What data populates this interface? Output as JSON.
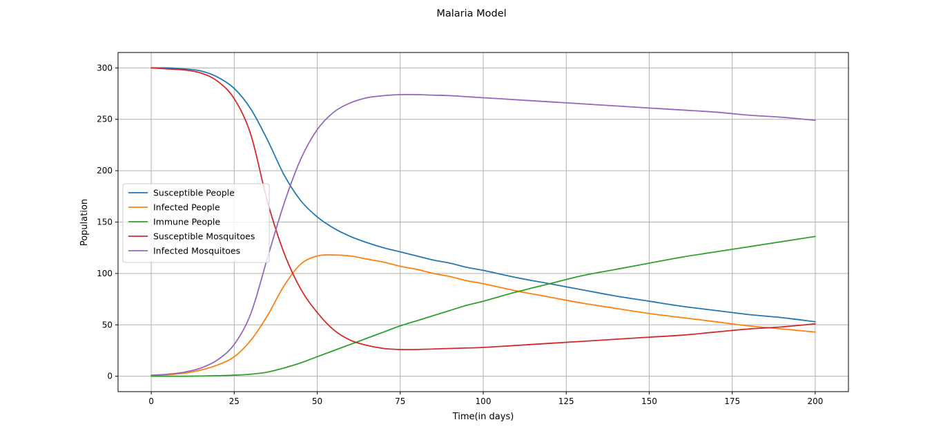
{
  "chart_data": {
    "type": "line",
    "title": "Malaria Model",
    "xlabel": "Time(in days)",
    "ylabel": "Population",
    "xlim": [
      -10,
      210
    ],
    "ylim": [
      -15,
      315
    ],
    "xticks": [
      0,
      25,
      50,
      75,
      100,
      125,
      150,
      175,
      200
    ],
    "yticks": [
      0,
      50,
      100,
      150,
      200,
      250,
      300
    ],
    "grid": true,
    "legend": "center-left",
    "x": [
      0,
      5,
      10,
      15,
      20,
      25,
      30,
      35,
      40,
      45,
      50,
      55,
      60,
      65,
      70,
      75,
      80,
      85,
      90,
      95,
      100,
      110,
      120,
      130,
      140,
      150,
      160,
      170,
      180,
      190,
      200
    ],
    "series": [
      {
        "name": "Susceptible People",
        "color": "#1f77b4",
        "values": [
          300,
          300,
          299,
          297,
          291,
          280,
          260,
          230,
          196,
          171,
          155,
          144,
          136,
          130,
          125,
          121,
          117,
          113,
          110,
          106,
          103,
          96,
          90,
          84,
          78,
          73,
          68,
          64,
          60,
          57,
          53
        ]
      },
      {
        "name": "Infected People",
        "color": "#ff7f0e",
        "values": [
          1,
          1.5,
          3,
          6,
          11,
          19,
          35,
          59,
          88,
          109,
          117,
          118,
          117,
          114,
          111,
          107,
          104,
          100,
          97,
          93,
          90,
          83,
          77,
          71,
          66,
          61,
          57,
          53,
          49,
          46,
          43
        ]
      },
      {
        "name": "Immune People",
        "color": "#2ca02c",
        "values": [
          0,
          0,
          0,
          0.2,
          0.5,
          1,
          2,
          4,
          8,
          13,
          19,
          25,
          31,
          37,
          43,
          49,
          54,
          59,
          64,
          69,
          73,
          82,
          90,
          98,
          104,
          110,
          116,
          121,
          126,
          131,
          136
        ]
      },
      {
        "name": "Susceptible Mosquitoes",
        "color": "#d62728",
        "values": [
          300,
          299,
          298,
          295,
          287,
          270,
          235,
          170,
          120,
          85,
          62,
          45,
          35,
          30,
          27,
          26,
          26,
          26.5,
          27,
          27.5,
          28,
          30,
          32,
          34,
          36,
          38,
          40,
          43,
          46,
          48,
          51
        ]
      },
      {
        "name": "Infected Mosquitoes",
        "color": "#9467bd",
        "values": [
          1,
          2,
          4,
          8,
          16,
          31,
          61,
          115,
          168,
          211,
          240,
          257,
          266,
          271,
          273,
          274,
          274,
          273.5,
          273,
          272,
          271,
          269,
          267,
          265,
          263,
          261,
          259,
          257,
          254,
          252,
          249
        ]
      }
    ]
  }
}
